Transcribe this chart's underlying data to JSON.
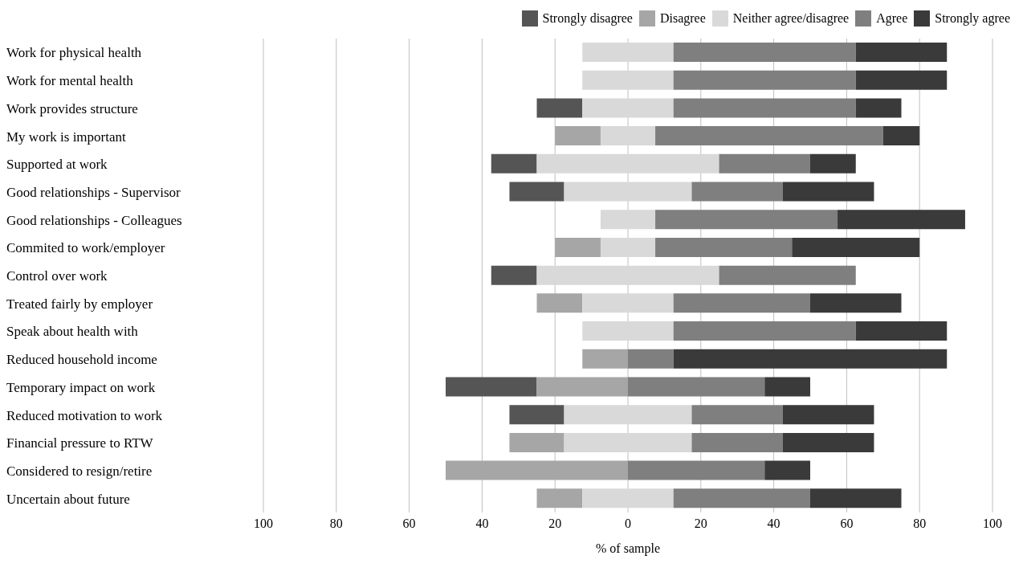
{
  "chart_data": {
    "type": "bar",
    "orientation": "horizontal",
    "xlabel": "% of sample",
    "categories": [
      "Work for physical health",
      "Work for mental health",
      "Work provides structure",
      "My work is important",
      "Supported at work",
      "Good relationships - Supervisor",
      "Good relationships - Colleagues",
      "Commited to work/employer",
      "Control over work",
      "Treated fairly by employer",
      "Speak about health with",
      "Reduced household income",
      "Temporary impact on work",
      "Reduced motivation to work",
      "Financial pressure to RTW",
      "Considered to resign/retire",
      "Uncertain about future"
    ],
    "series": [
      {
        "name": "Strongly disagree",
        "color": "#555555",
        "values": [
          null,
          null,
          12.5,
          null,
          12.5,
          15,
          null,
          null,
          12.5,
          null,
          null,
          null,
          25,
          15,
          null,
          null,
          null
        ],
        "base": [
          null,
          null,
          -25,
          null,
          -37.5,
          -32.5,
          null,
          null,
          -37.5,
          null,
          null,
          null,
          -50,
          -32.5,
          null,
          null,
          null
        ]
      },
      {
        "name": "Disagree",
        "color": "#a6a6a6",
        "values": [
          null,
          null,
          null,
          12.5,
          null,
          null,
          null,
          12.5,
          null,
          12.5,
          null,
          12.5,
          25,
          null,
          15,
          50,
          12.5
        ],
        "base": [
          null,
          null,
          null,
          -20,
          null,
          null,
          null,
          -20,
          null,
          -25,
          null,
          -12.5,
          -25,
          null,
          -32.5,
          -50,
          -25
        ]
      },
      {
        "name": "Neither agree/disagree",
        "color": "#d9d9d9",
        "values": [
          25,
          25,
          25,
          15,
          50,
          35,
          15,
          15,
          50,
          25,
          25,
          null,
          null,
          35,
          35,
          null,
          25
        ],
        "base": [
          -12.5,
          -12.5,
          -12.5,
          -7.5,
          -25,
          -17.5,
          -7.5,
          -7.5,
          -25,
          -12.5,
          -12.5,
          null,
          null,
          -17.5,
          -17.5,
          null,
          -12.5
        ]
      },
      {
        "name": "Agree",
        "color": "#7f7f7f",
        "values": [
          50,
          50,
          50,
          62.5,
          25,
          25,
          50,
          37.5,
          37.5,
          37.5,
          50,
          12.5,
          37.5,
          25,
          25,
          37.5,
          37.5
        ],
        "base": [
          12.5,
          12.5,
          12.5,
          7.5,
          25,
          17.5,
          7.5,
          7.5,
          25,
          12.5,
          12.5,
          0,
          0,
          17.5,
          17.5,
          0,
          12.5
        ]
      },
      {
        "name": "Strongly agree",
        "color": "#3a3a3a",
        "values": [
          25,
          25,
          12.5,
          10,
          12.5,
          25,
          35,
          35,
          null,
          25,
          25,
          75,
          12.5,
          25,
          25,
          12.5,
          25
        ],
        "base": [
          62.5,
          62.5,
          62.5,
          70,
          50,
          42.5,
          57.5,
          45,
          null,
          50,
          62.5,
          12.5,
          37.5,
          42.5,
          42.5,
          37.5,
          50
        ]
      }
    ],
    "xlim": [
      -100,
      100
    ],
    "xticks": [
      {
        "value": -100,
        "label": "100"
      },
      {
        "value": -80,
        "label": "80"
      },
      {
        "value": -60,
        "label": "60"
      },
      {
        "value": -40,
        "label": "40"
      },
      {
        "value": -20,
        "label": "20"
      },
      0,
      20,
      40,
      60,
      80,
      100
    ],
    "grid": "x",
    "legend": "top"
  }
}
